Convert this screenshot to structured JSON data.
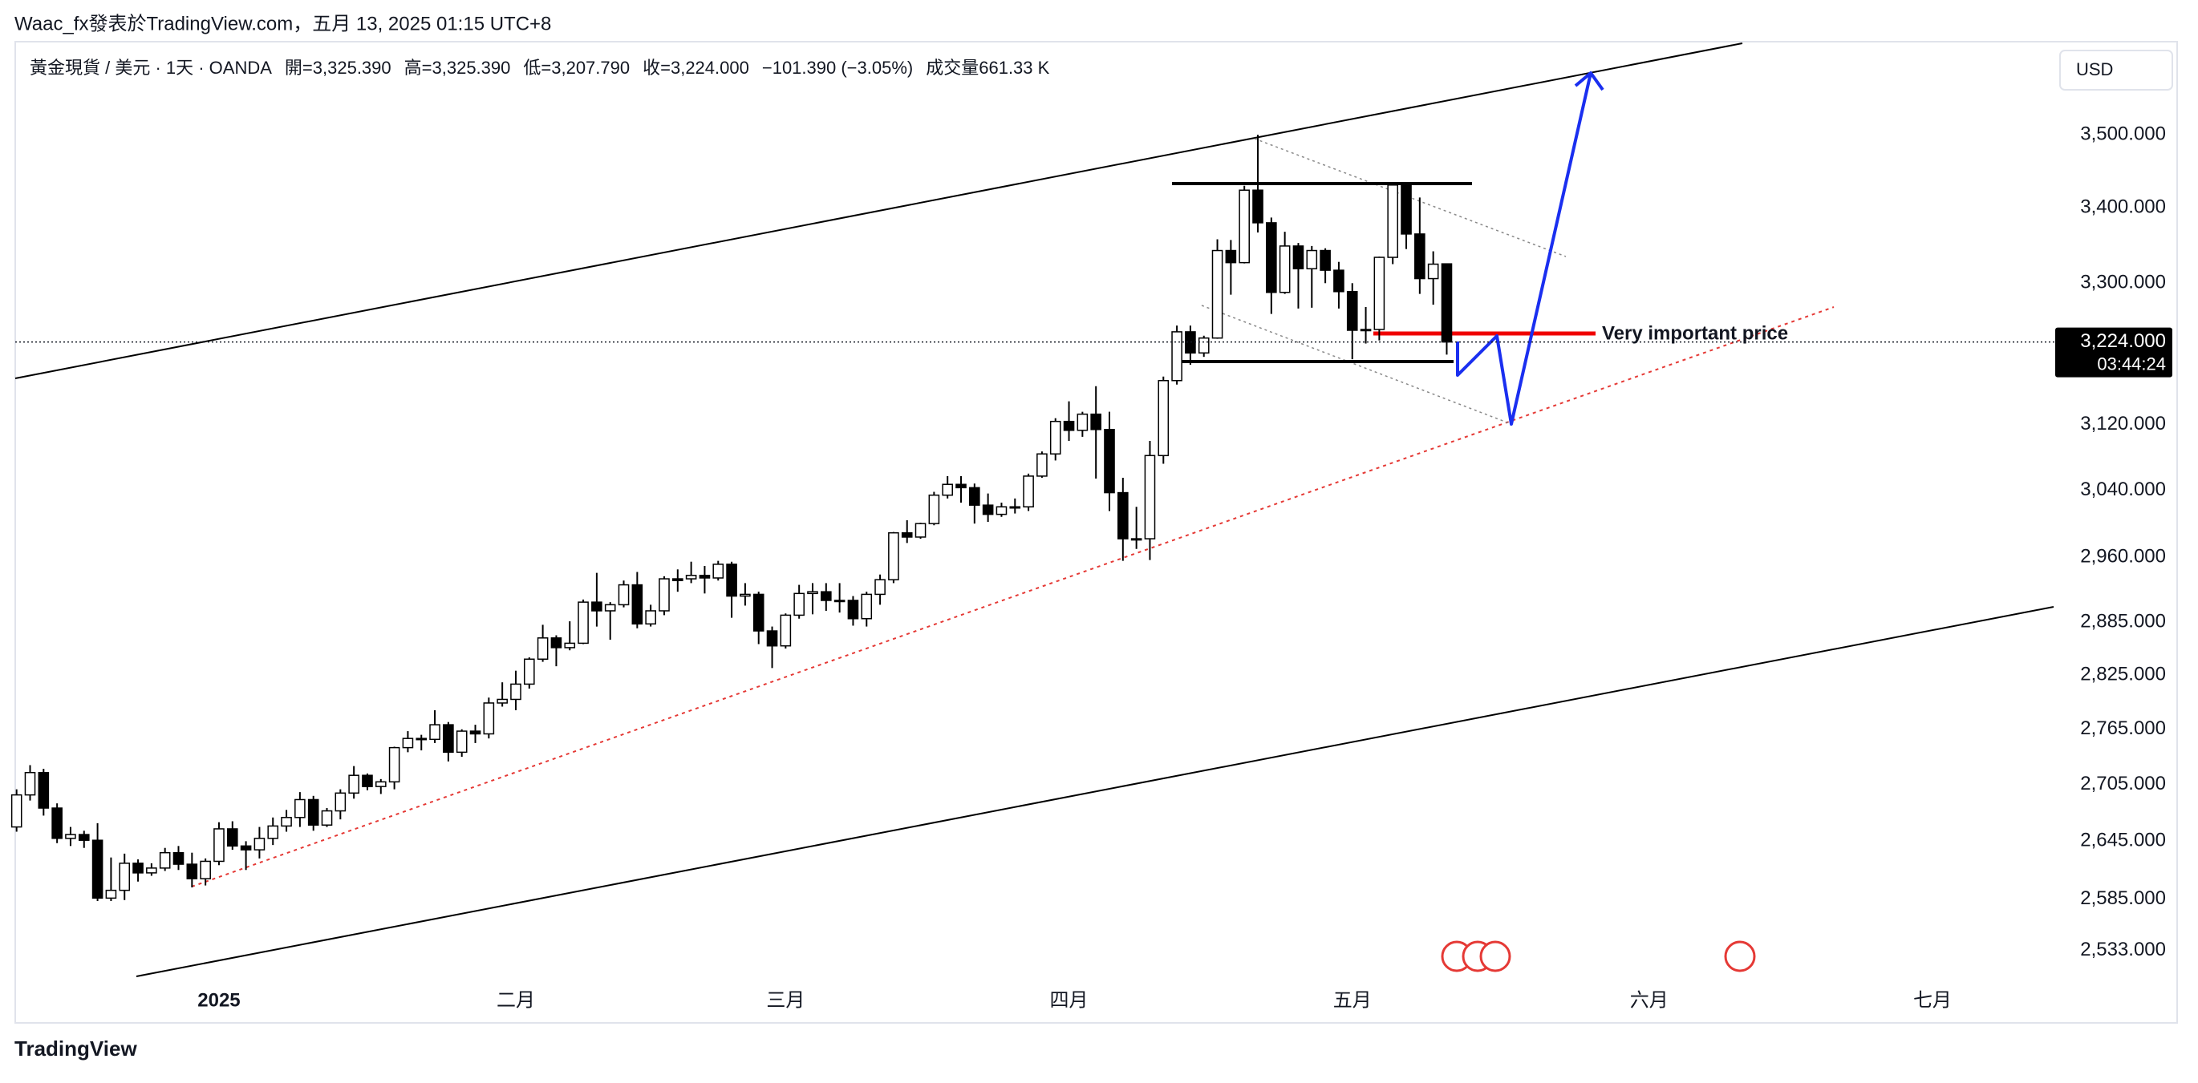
{
  "header": {
    "publisher": "Waac_fx發表於TradingView.com，五月 13, 2025 01:15 UTC+8"
  },
  "footer": {
    "logo": "TradingView"
  },
  "chart_data": {
    "type": "candlestick",
    "legend_items": [
      "黃金現貨 / 美元 · 1天 · OANDA",
      "開=3,325.390",
      "高=3,325.390",
      "低=3,207.790",
      "收=3,224.000",
      "−101.390 (−3.05%)",
      "成交量661.33 K"
    ],
    "currency": "USD",
    "last_price_label": "3,224.000",
    "countdown": "03:44:24",
    "annotation": "Very important price",
    "log_scale": true,
    "up_color": "#ffffff",
    "down_color": "#000000",
    "ylim": [
      2503,
      3627
    ],
    "yticks": [
      {
        "value": 2533,
        "label": "2,533.000"
      },
      {
        "value": 2585,
        "label": "2,585.000"
      },
      {
        "value": 2645,
        "label": "2,645.000"
      },
      {
        "value": 2705,
        "label": "2,705.000"
      },
      {
        "value": 2765,
        "label": "2,765.000"
      },
      {
        "value": 2825,
        "label": "2,825.000"
      },
      {
        "value": 2885,
        "label": "2,885.000"
      },
      {
        "value": 2960,
        "label": "2,960.000"
      },
      {
        "value": 3040,
        "label": "3,040.000"
      },
      {
        "value": 3120,
        "label": "3,120.000"
      },
      {
        "value": 3300,
        "label": "3,300.000"
      },
      {
        "value": 3400,
        "label": "3,400.000"
      },
      {
        "value": 3500,
        "label": "3,500.000"
      }
    ],
    "xlim": [
      -0.1,
      151.1
    ],
    "xticks": [
      {
        "value": 15,
        "label": "2025"
      },
      {
        "value": 37,
        "label": "二月"
      },
      {
        "value": 57,
        "label": "三月"
      },
      {
        "value": 78,
        "label": "四月"
      },
      {
        "value": 99,
        "label": "五月"
      },
      {
        "value": 121,
        "label": "六月"
      },
      {
        "value": 142,
        "label": "七月"
      }
    ],
    "candles": [
      [
        2660,
        2700,
        2655,
        2694
      ],
      [
        2694,
        2726,
        2688,
        2718
      ],
      [
        2718,
        2722,
        2672,
        2680
      ],
      [
        2680,
        2685,
        2643,
        2648
      ],
      [
        2648,
        2660,
        2640,
        2652
      ],
      [
        2652,
        2656,
        2638,
        2646
      ],
      [
        2646,
        2664,
        2583,
        2586
      ],
      [
        2586,
        2628,
        2583,
        2594
      ],
      [
        2594,
        2632,
        2584,
        2622
      ],
      [
        2622,
        2626,
        2603,
        2612
      ],
      [
        2612,
        2622,
        2609,
        2617
      ],
      [
        2617,
        2638,
        2614,
        2633
      ],
      [
        2633,
        2640,
        2615,
        2621
      ],
      [
        2621,
        2633,
        2597,
        2606
      ],
      [
        2606,
        2627,
        2599,
        2624
      ],
      [
        2624,
        2665,
        2620,
        2658
      ],
      [
        2658,
        2666,
        2636,
        2640
      ],
      [
        2640,
        2645,
        2615,
        2636
      ],
      [
        2636,
        2660,
        2627,
        2648
      ],
      [
        2648,
        2670,
        2641,
        2661
      ],
      [
        2661,
        2678,
        2655,
        2670
      ],
      [
        2670,
        2697,
        2660,
        2689
      ],
      [
        2689,
        2693,
        2656,
        2662
      ],
      [
        2662,
        2680,
        2660,
        2677
      ],
      [
        2677,
        2700,
        2668,
        2696
      ],
      [
        2696,
        2725,
        2690,
        2715
      ],
      [
        2715,
        2717,
        2699,
        2703
      ],
      [
        2703,
        2711,
        2695,
        2708
      ],
      [
        2708,
        2746,
        2700,
        2745
      ],
      [
        2745,
        2763,
        2740,
        2755
      ],
      [
        2755,
        2759,
        2742,
        2754
      ],
      [
        2754,
        2786,
        2750,
        2770
      ],
      [
        2770,
        2773,
        2730,
        2740
      ],
      [
        2740,
        2765,
        2735,
        2763
      ],
      [
        2763,
        2770,
        2750,
        2760
      ],
      [
        2760,
        2800,
        2755,
        2794
      ],
      [
        2794,
        2817,
        2790,
        2798
      ],
      [
        2798,
        2830,
        2786,
        2815
      ],
      [
        2815,
        2845,
        2810,
        2843
      ],
      [
        2843,
        2882,
        2840,
        2867
      ],
      [
        2867,
        2870,
        2835,
        2856
      ],
      [
        2856,
        2886,
        2853,
        2861
      ],
      [
        2861,
        2911,
        2860,
        2908
      ],
      [
        2908,
        2942,
        2880,
        2898
      ],
      [
        2898,
        2908,
        2865,
        2905
      ],
      [
        2905,
        2933,
        2902,
        2928
      ],
      [
        2928,
        2943,
        2878,
        2883
      ],
      [
        2883,
        2905,
        2880,
        2898
      ],
      [
        2898,
        2938,
        2893,
        2935
      ],
      [
        2935,
        2946,
        2920,
        2933
      ],
      [
        2935,
        2955,
        2930,
        2939
      ],
      [
        2939,
        2950,
        2918,
        2936
      ],
      [
        2936,
        2956,
        2933,
        2952
      ],
      [
        2952,
        2955,
        2890,
        2915
      ],
      [
        2915,
        2930,
        2904,
        2917
      ],
      [
        2917,
        2920,
        2860,
        2875
      ],
      [
        2875,
        2880,
        2833,
        2858
      ],
      [
        2858,
        2895,
        2855,
        2893
      ],
      [
        2893,
        2928,
        2889,
        2918
      ],
      [
        2918,
        2930,
        2894,
        2920
      ],
      [
        2920,
        2930,
        2898,
        2910
      ],
      [
        2910,
        2930,
        2896,
        2910
      ],
      [
        2910,
        2915,
        2881,
        2889
      ],
      [
        2889,
        2920,
        2880,
        2917
      ],
      [
        2917,
        2940,
        2905,
        2934
      ],
      [
        2934,
        2990,
        2930,
        2989
      ],
      [
        2989,
        3004,
        2977,
        2984
      ],
      [
        2984,
        3001,
        2982,
        3000
      ],
      [
        3000,
        3038,
        2998,
        3034
      ],
      [
        3034,
        3057,
        3030,
        3047
      ],
      [
        3047,
        3057,
        3025,
        3043
      ],
      [
        3043,
        3048,
        3000,
        3022
      ],
      [
        3022,
        3036,
        3002,
        3011
      ],
      [
        3011,
        3025,
        3008,
        3020
      ],
      [
        3020,
        3030,
        3012,
        3020
      ],
      [
        3020,
        3060,
        3015,
        3057
      ],
      [
        3057,
        3087,
        3055,
        3084
      ],
      [
        3084,
        3128,
        3076,
        3124
      ],
      [
        3124,
        3149,
        3100,
        3113
      ],
      [
        3113,
        3136,
        3105,
        3133
      ],
      [
        3133,
        3168,
        3054,
        3114
      ],
      [
        3114,
        3136,
        3015,
        3037
      ],
      [
        3037,
        3055,
        2956,
        2982
      ],
      [
        2982,
        3020,
        2970,
        2982
      ],
      [
        2982,
        3100,
        2957,
        3082
      ],
      [
        3082,
        3180,
        3072,
        3175
      ],
      [
        3175,
        3245,
        3170,
        3237
      ],
      [
        3237,
        3245,
        3195,
        3210
      ],
      [
        3210,
        3232,
        3205,
        3229
      ],
      [
        3229,
        3358,
        3228,
        3343
      ],
      [
        3343,
        3357,
        3285,
        3327
      ],
      [
        3327,
        3430,
        3326,
        3424
      ],
      [
        3424,
        3500,
        3367,
        3380
      ],
      [
        3380,
        3387,
        3260,
        3288
      ],
      [
        3288,
        3368,
        3286,
        3349
      ],
      [
        3349,
        3353,
        3267,
        3319
      ],
      [
        3319,
        3349,
        3268,
        3343
      ],
      [
        3343,
        3346,
        3300,
        3317
      ],
      [
        3317,
        3328,
        3267,
        3289
      ],
      [
        3289,
        3300,
        3202,
        3239
      ],
      [
        3239,
        3269,
        3222,
        3240
      ],
      [
        3240,
        3335,
        3226,
        3334
      ],
      [
        3334,
        3435,
        3325,
        3431
      ],
      [
        3431,
        3433,
        3345,
        3365
      ],
      [
        3365,
        3414,
        3286,
        3306
      ],
      [
        3306,
        3342,
        3272,
        3325
      ],
      [
        3325.39,
        3325.39,
        3207.79,
        3224
      ]
    ]
  }
}
